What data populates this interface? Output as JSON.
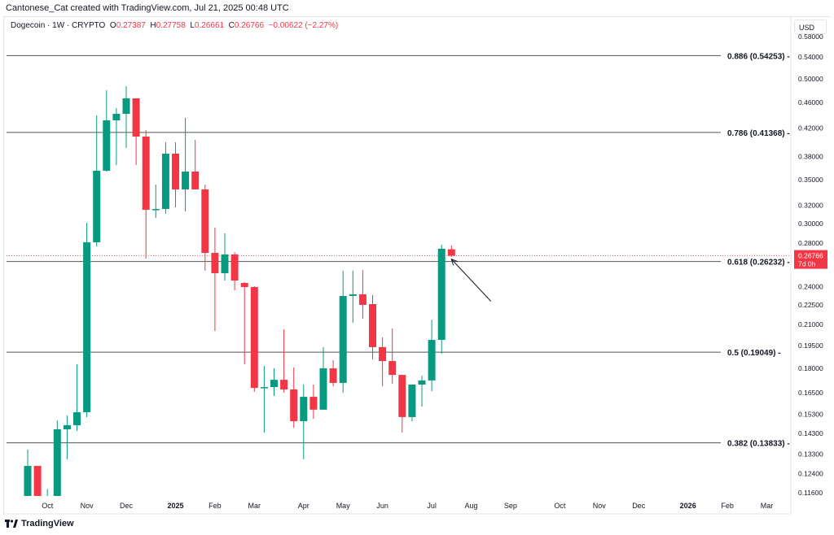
{
  "credit": "Cantonese_Cat created with TradingView.com, Jul 21, 2025 00:48 UTC",
  "legend": {
    "symbol": "Dogecoin · 1W · CRYPTO",
    "o_label": "O",
    "o": "0.27387",
    "h_label": "H",
    "h": "0.27758",
    "l_label": "L",
    "l": "0.26661",
    "c_label": "C",
    "c": "0.26766",
    "change": "−0.00622 (−2.27%)"
  },
  "currency": "USD",
  "footer": {
    "brand": "TradingView",
    "logo_icon": "tradingview-logo-icon"
  },
  "colors": {
    "up": "#089981",
    "down": "#f23645",
    "fib_line": "#555555"
  },
  "chart_data": {
    "type": "candlestick",
    "interval": "1W",
    "y_scale": "log",
    "ylim": [
      0.105,
      0.6
    ],
    "grid": false,
    "y_ticks": [
      "0.58000",
      "0.54000",
      "0.50000",
      "0.46000",
      "0.42000",
      "0.38000",
      "0.35000",
      "0.32000",
      "0.30000",
      "0.28000",
      "0.24000",
      "0.22500",
      "0.21000",
      "0.19500",
      "0.18000",
      "0.16500",
      "0.15300",
      "0.14300",
      "0.13300",
      "0.12400",
      "0.11600"
    ],
    "x_ticks": [
      {
        "label": "Oct",
        "date": "2024-10-07"
      },
      {
        "label": "Nov",
        "date": "2024-11-04"
      },
      {
        "label": "Dec",
        "date": "2024-12-02"
      },
      {
        "label": "2025",
        "date": "2025-01-06",
        "bold": true
      },
      {
        "label": "Feb",
        "date": "2025-02-03"
      },
      {
        "label": "Mar",
        "date": "2025-03-03"
      },
      {
        "label": "Apr",
        "date": "2025-04-07"
      },
      {
        "label": "May",
        "date": "2025-05-05"
      },
      {
        "label": "Jun",
        "date": "2025-06-02"
      },
      {
        "label": "Jul",
        "date": "2025-07-07"
      },
      {
        "label": "Aug",
        "date": "2025-08-04"
      },
      {
        "label": "Sep",
        "date": "2025-09-01"
      },
      {
        "label": "Oct",
        "date": "2025-10-06"
      },
      {
        "label": "Nov",
        "date": "2025-11-03"
      },
      {
        "label": "Dec",
        "date": "2025-12-01"
      },
      {
        "label": "2026",
        "date": "2026-01-05",
        "bold": true
      },
      {
        "label": "Feb",
        "date": "2026-02-02"
      },
      {
        "label": "Mar",
        "date": "2026-03-02"
      }
    ],
    "candles": [
      [
        "2024-09-23",
        0.108,
        0.1351,
        0.105,
        0.1275
      ],
      [
        "2024-09-30",
        0.1275,
        0.1275,
        0.105,
        0.108
      ],
      [
        "2024-10-07",
        0.108,
        0.1175,
        0.104,
        0.109
      ],
      [
        "2024-10-14",
        0.109,
        0.1498,
        0.106,
        0.1451
      ],
      [
        "2024-10-21",
        0.1451,
        0.1523,
        0.1305,
        0.1472
      ],
      [
        "2024-10-28",
        0.1472,
        0.1825,
        0.1443,
        0.1541
      ],
      [
        "2024-11-04",
        0.1541,
        0.3007,
        0.1515,
        0.2807
      ],
      [
        "2024-11-11",
        0.2807,
        0.4392,
        0.2767,
        0.3614
      ],
      [
        "2024-11-18",
        0.3614,
        0.48,
        0.3603,
        0.4317
      ],
      [
        "2024-11-25",
        0.4317,
        0.4507,
        0.3687,
        0.4417
      ],
      [
        "2024-12-02",
        0.4417,
        0.487,
        0.3916,
        0.4666
      ],
      [
        "2024-12-09",
        0.4666,
        0.4666,
        0.3687,
        0.4077
      ],
      [
        "2024-12-16",
        0.4077,
        0.4171,
        0.2651,
        0.3148
      ],
      [
        "2024-12-23",
        0.3148,
        0.3441,
        0.306,
        0.3157
      ],
      [
        "2024-12-30",
        0.3157,
        0.3995,
        0.3104,
        0.3838
      ],
      [
        "2025-01-06",
        0.3838,
        0.3995,
        0.3176,
        0.3383
      ],
      [
        "2025-01-13",
        0.3383,
        0.4355,
        0.313,
        0.3603
      ],
      [
        "2025-01-20",
        0.3603,
        0.403,
        0.3383,
        0.3383
      ],
      [
        "2025-01-27",
        0.3383,
        0.3441,
        0.2539,
        0.2704
      ],
      [
        "2025-02-03",
        0.2704,
        0.2956,
        0.2053,
        0.2517
      ],
      [
        "2025-02-10",
        0.2517,
        0.2897,
        0.2453,
        0.2689
      ],
      [
        "2025-02-17",
        0.2689,
        0.2712,
        0.237,
        0.2453
      ],
      [
        "2025-02-24",
        0.2432,
        0.2439,
        0.1825,
        0.2397
      ],
      [
        "2025-03-03",
        0.2397,
        0.2404,
        0.1656,
        0.1679
      ],
      [
        "2025-03-10",
        0.168,
        0.1815,
        0.1434,
        0.1684
      ],
      [
        "2025-03-17",
        0.1684,
        0.1799,
        0.1632,
        0.1728
      ],
      [
        "2025-03-24",
        0.1728,
        0.2065,
        0.1651,
        0.167
      ],
      [
        "2025-03-31",
        0.167,
        0.1805,
        0.1459,
        0.1493
      ],
      [
        "2025-04-07",
        0.1493,
        0.1699,
        0.1305,
        0.1627
      ],
      [
        "2025-04-14",
        0.1627,
        0.1699,
        0.1506,
        0.1555
      ],
      [
        "2025-04-21",
        0.1555,
        0.1939,
        0.1555,
        0.1799
      ],
      [
        "2025-04-28",
        0.1799,
        0.1852,
        0.1689,
        0.1709
      ],
      [
        "2025-05-05",
        0.1709,
        0.2539,
        0.1651,
        0.2323
      ],
      [
        "2025-05-12",
        0.2323,
        0.2539,
        0.2113,
        0.2336
      ],
      [
        "2025-05-19",
        0.2336,
        0.2545,
        0.2143,
        0.2251
      ],
      [
        "2025-05-26",
        0.2257,
        0.233,
        0.1857,
        0.1939
      ],
      [
        "2025-06-02",
        0.1939,
        0.2007,
        0.1689,
        0.1846
      ],
      [
        "2025-06-09",
        0.1846,
        0.2071,
        0.1704,
        0.1758
      ],
      [
        "2025-06-16",
        0.1758,
        0.1758,
        0.1434,
        0.1515
      ],
      [
        "2025-06-23",
        0.1515,
        0.1699,
        0.1493,
        0.1699
      ],
      [
        "2025-06-30",
        0.1699,
        0.1753,
        0.1572,
        0.1724
      ],
      [
        "2025-07-07",
        0.1724,
        0.2137,
        0.166,
        0.1989
      ],
      [
        "2025-07-14",
        0.1989,
        0.2783,
        0.1895,
        0.2744
      ],
      [
        "2025-07-21",
        0.27387,
        0.27758,
        0.26661,
        0.26766
      ]
    ],
    "fib_levels": [
      {
        "label": "0.886 (0.54253)",
        "ratio": 0.886,
        "price": 0.54253
      },
      {
        "label": "0.786 (0.41368)",
        "ratio": 0.786,
        "price": 0.41368
      },
      {
        "label": "0.618 (0.26232)",
        "ratio": 0.618,
        "price": 0.26232
      },
      {
        "label": "0.5 (0.19049)",
        "ratio": 0.5,
        "price": 0.19049
      },
      {
        "label": "0.382 (0.13833)",
        "ratio": 0.382,
        "price": 0.13833
      }
    ],
    "last_price": {
      "value": "0.26766",
      "countdown": "7d 0h",
      "price": 0.26766
    },
    "annotation": {
      "type": "arrow",
      "from": {
        "date": "2025-08-18",
        "price": 0.228
      },
      "to": {
        "date": "2025-07-21",
        "price": 0.2645
      }
    }
  }
}
